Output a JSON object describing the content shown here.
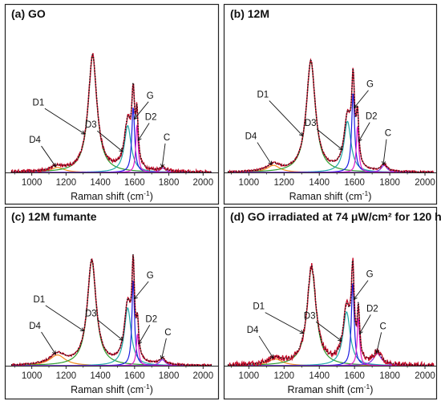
{
  "chart_data": [
    {
      "type": "line",
      "title": "(a) GO",
      "xlabel": "Raman shift (cm",
      "xlabel_sup": "-1",
      "xlabel_end": ")",
      "xlim": [
        880,
        2050
      ],
      "ylim": [
        0,
        1.05
      ],
      "xticks": [
        1000,
        1200,
        1400,
        1600,
        1800,
        2000
      ],
      "grid": false,
      "noise": 0.012,
      "series": [
        {
          "name": "D4",
          "center": 1150,
          "amplitude": 0.035,
          "width": 95,
          "color": "#f28c1e"
        },
        {
          "name": "D1",
          "center": 1355,
          "amplitude": 0.82,
          "width": 62,
          "color": "#2e9e2e"
        },
        {
          "name": "D3",
          "center": 1560,
          "amplitude": 0.33,
          "width": 48,
          "color": "#1fa8a8"
        },
        {
          "name": "G",
          "center": 1592,
          "amplitude": 0.46,
          "width": 20,
          "color": "#1d1de0"
        },
        {
          "name": "D2",
          "center": 1614,
          "amplitude": 0.34,
          "width": 16,
          "color": "#e01fc8"
        },
        {
          "name": "C",
          "center": 1765,
          "amplitude": 0.03,
          "width": 42,
          "color": "#8a2be2"
        }
      ],
      "labels": [
        {
          "text": "D1",
          "series": "D1"
        },
        {
          "text": "D3",
          "series": "D3"
        },
        {
          "text": "G",
          "series": "G"
        },
        {
          "text": "D2",
          "series": "D2"
        },
        {
          "text": "C",
          "series": "C"
        },
        {
          "text": "D4",
          "series": "D4"
        }
      ]
    },
    {
      "type": "line",
      "title": "(b) 12M",
      "xlabel": "Raman shift (cm",
      "xlabel_sup": "-1",
      "xlabel_end": ")",
      "xlim": [
        880,
        2050
      ],
      "ylim": [
        0,
        1.05
      ],
      "xticks": [
        1000,
        1200,
        1400,
        1600,
        1800,
        2000
      ],
      "grid": false,
      "noise": 0.006,
      "series": [
        {
          "name": "D4",
          "center": 1140,
          "amplitude": 0.05,
          "width": 90,
          "color": "#f28c1e"
        },
        {
          "name": "D1",
          "center": 1352,
          "amplitude": 0.78,
          "width": 62,
          "color": "#2e9e2e"
        },
        {
          "name": "D3",
          "center": 1560,
          "amplitude": 0.36,
          "width": 48,
          "color": "#1fa8a8"
        },
        {
          "name": "G",
          "center": 1592,
          "amplitude": 0.56,
          "width": 20,
          "color": "#1d1de0"
        },
        {
          "name": "D2",
          "center": 1617,
          "amplitude": 0.33,
          "width": 16,
          "color": "#e01fc8"
        },
        {
          "name": "C",
          "center": 1768,
          "amplitude": 0.05,
          "width": 40,
          "color": "#8a2be2"
        }
      ],
      "labels": [
        {
          "text": "D1",
          "series": "D1"
        },
        {
          "text": "D3",
          "series": "D3"
        },
        {
          "text": "G",
          "series": "G"
        },
        {
          "text": "D2",
          "series": "D2"
        },
        {
          "text": "C",
          "series": "C"
        },
        {
          "text": "D4",
          "series": "D4"
        }
      ]
    },
    {
      "type": "line",
      "title": "(c) 12M fumante",
      "xlabel": "Raman shift (cm",
      "xlabel_sup": "-1",
      "xlabel_end": ")",
      "xlim": [
        880,
        2050
      ],
      "ylim": [
        0,
        1.05
      ],
      "xticks": [
        1000,
        1200,
        1400,
        1600,
        1800,
        2000
      ],
      "grid": false,
      "noise": 0.006,
      "series": [
        {
          "name": "D4",
          "center": 1150,
          "amplitude": 0.08,
          "width": 110,
          "color": "#f28c1e"
        },
        {
          "name": "D1",
          "center": 1350,
          "amplitude": 0.78,
          "width": 62,
          "color": "#2e9e2e"
        },
        {
          "name": "D3",
          "center": 1560,
          "amplitude": 0.43,
          "width": 48,
          "color": "#1fa8a8"
        },
        {
          "name": "G",
          "center": 1592,
          "amplitude": 0.64,
          "width": 18,
          "color": "#1d1de0"
        },
        {
          "name": "D2",
          "center": 1617,
          "amplitude": 0.24,
          "width": 16,
          "color": "#e01fc8"
        },
        {
          "name": "C",
          "center": 1762,
          "amplitude": 0.045,
          "width": 42,
          "color": "#8a2be2"
        }
      ],
      "labels": [
        {
          "text": "D1",
          "series": "D1"
        },
        {
          "text": "D3",
          "series": "D3"
        },
        {
          "text": "G",
          "series": "G"
        },
        {
          "text": "D2",
          "series": "D2"
        },
        {
          "text": "C",
          "series": "C"
        },
        {
          "text": "D4",
          "series": "D4"
        }
      ]
    },
    {
      "type": "line",
      "title": "(d) GO irradiated at 74 μW/cm² for 120 h",
      "xlabel": "Rraman shift (cm",
      "xlabel_sup": "-1",
      "xlabel_end": ")",
      "xlim": [
        880,
        2050
      ],
      "ylim": [
        0,
        1.05
      ],
      "xticks": [
        1000,
        1200,
        1400,
        1600,
        1800,
        2000
      ],
      "grid": false,
      "noise": 0.02,
      "series": [
        {
          "name": "D4",
          "center": 1150,
          "amplitude": 0.05,
          "width": 100,
          "color": "#f28c1e"
        },
        {
          "name": "D1",
          "center": 1356,
          "amplitude": 0.73,
          "width": 62,
          "color": "#2e9e2e"
        },
        {
          "name": "D3",
          "center": 1555,
          "amplitude": 0.4,
          "width": 50,
          "color": "#1fa8a8"
        },
        {
          "name": "G",
          "center": 1590,
          "amplitude": 0.62,
          "width": 19,
          "color": "#1d1de0"
        },
        {
          "name": "D2",
          "center": 1622,
          "amplitude": 0.36,
          "width": 16,
          "color": "#e01fc8"
        },
        {
          "name": "C",
          "center": 1730,
          "amplitude": 0.09,
          "width": 55,
          "color": "#8a2be2"
        }
      ],
      "labels": [
        {
          "text": "D1",
          "series": "D1"
        },
        {
          "text": "D3",
          "series": "D3"
        },
        {
          "text": "G",
          "series": "G"
        },
        {
          "text": "D2",
          "series": "D2"
        },
        {
          "text": "C",
          "series": "C"
        },
        {
          "text": "D4",
          "series": "D4"
        }
      ]
    }
  ],
  "colors": {
    "experimental": "#c8102e",
    "fit_dots": "#111111",
    "axis": "#222222"
  }
}
